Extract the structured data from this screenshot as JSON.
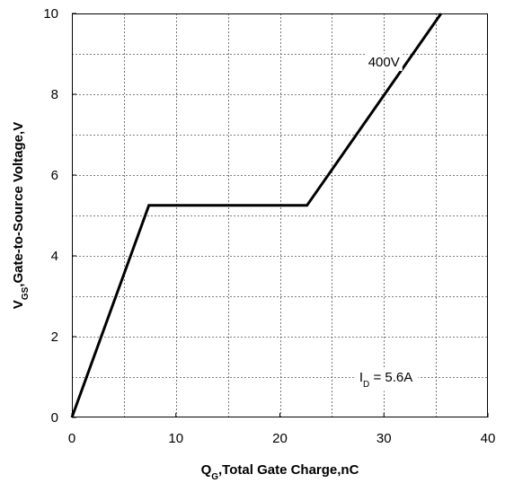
{
  "chart_data": {
    "type": "line",
    "xlabel": {
      "main": "Q",
      "sub": "G",
      "rest": ",Total Gate Charge,nC"
    },
    "ylabel": {
      "main": "V",
      "sub": "GS",
      "rest": ",Gate-to-Source Voltage,V"
    },
    "xlim": [
      0,
      40
    ],
    "ylim": [
      0,
      10
    ],
    "x_ticks": [
      0,
      10,
      20,
      30,
      40
    ],
    "y_ticks": [
      0,
      2,
      4,
      6,
      8,
      10
    ],
    "x_minor_gridlines": [
      5,
      15,
      25,
      35
    ],
    "y_minor_gridlines": [
      1,
      3,
      5,
      7,
      9
    ],
    "grid": true,
    "grid_style": "dashed",
    "series": [
      {
        "name": "400V",
        "color": "#000000",
        "x": [
          0,
          7.4,
          22.6,
          35.5
        ],
        "y": [
          0,
          5.25,
          5.25,
          10.0
        ]
      }
    ],
    "annotations": [
      {
        "id": "series-label",
        "text": "400V",
        "x": 30.0,
        "y": 8.8
      },
      {
        "id": "condition-label",
        "main": "I",
        "sub": "D",
        "rest": " = 5.6A",
        "x": 30.2,
        "y": 1.0
      }
    ]
  }
}
